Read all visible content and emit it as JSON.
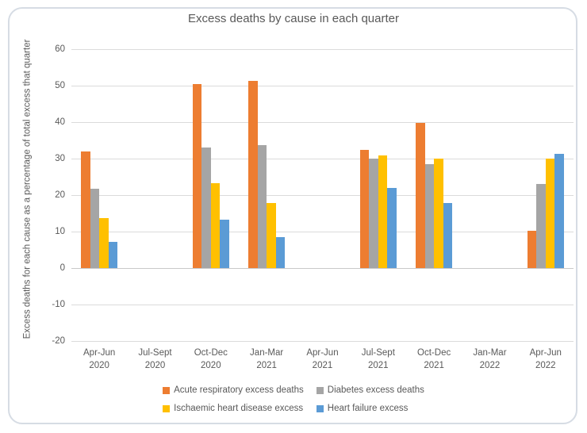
{
  "chart_data": {
    "type": "bar",
    "title": "Excess deaths by cause in each quarter",
    "ylabel": "Excess deaths for each cause as a percentage of total excess that quarter",
    "categories": [
      "Apr-Jun 2020",
      "Jul-Sept 2020",
      "Oct-Dec 2020",
      "Jan-Mar 2021",
      "Apr-Jun 2021",
      "Jul-Sept 2021",
      "Oct-Dec 2021",
      "Jan-Mar 2022",
      "Apr-Jun 2022"
    ],
    "series": [
      {
        "name": "Acute respiratory excess deaths",
        "color": "#ED7D31",
        "values": [
          32.0,
          null,
          50.4,
          51.2,
          null,
          32.3,
          39.8,
          null,
          10.2
        ]
      },
      {
        "name": "Diabetes excess deaths",
        "color": "#A5A5A5",
        "values": [
          21.8,
          null,
          33.0,
          33.8,
          null,
          30.0,
          28.4,
          null,
          23.0
        ]
      },
      {
        "name": "Ischaemic heart disease excess",
        "color": "#FFC000",
        "values": [
          13.7,
          null,
          23.2,
          17.9,
          null,
          30.8,
          30.0,
          null,
          30.0
        ]
      },
      {
        "name": "Heart failure excess",
        "color": "#5B9BD5",
        "values": [
          7.2,
          null,
          13.2,
          8.4,
          null,
          22.0,
          17.9,
          null,
          31.2
        ]
      }
    ],
    "ylim": [
      -20,
      60
    ],
    "yticks": [
      60,
      50,
      40,
      30,
      20,
      10,
      0,
      -10,
      -20
    ],
    "grid": true,
    "legend_position": "bottom"
  },
  "colors": {
    "gridline": "#DBDBDB",
    "axis_line": "#C9C9C9",
    "text": "#595959",
    "title": "#595959",
    "frame_border": "#D6DCE4"
  }
}
